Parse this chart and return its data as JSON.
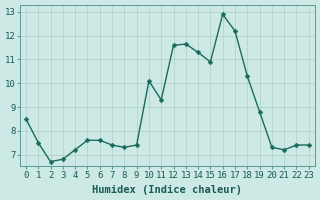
{
  "x": [
    0,
    1,
    2,
    3,
    4,
    5,
    6,
    7,
    8,
    9,
    10,
    11,
    12,
    13,
    14,
    15,
    16,
    17,
    18,
    19,
    20,
    21,
    22,
    23
  ],
  "y": [
    8.5,
    7.5,
    6.7,
    6.8,
    7.2,
    7.6,
    7.6,
    7.4,
    7.3,
    7.4,
    10.1,
    9.3,
    11.6,
    11.65,
    11.3,
    10.9,
    12.9,
    12.2,
    10.3,
    8.8,
    7.3,
    7.2,
    7.4,
    7.4
  ],
  "line_color": "#1a6b5a",
  "marker_color": "#1a6b5a",
  "bg_color": "#cce9e5",
  "grid_color": "#aecfcb",
  "xlabel": "Humidex (Indice chaleur)",
  "ylim": [
    6.5,
    13.3
  ],
  "yticks": [
    7,
    8,
    9,
    10,
    11,
    12,
    13
  ],
  "xlabel_fontsize": 7.5,
  "tick_fontsize": 6.5,
  "line_width": 1.0,
  "marker_size": 2.5
}
